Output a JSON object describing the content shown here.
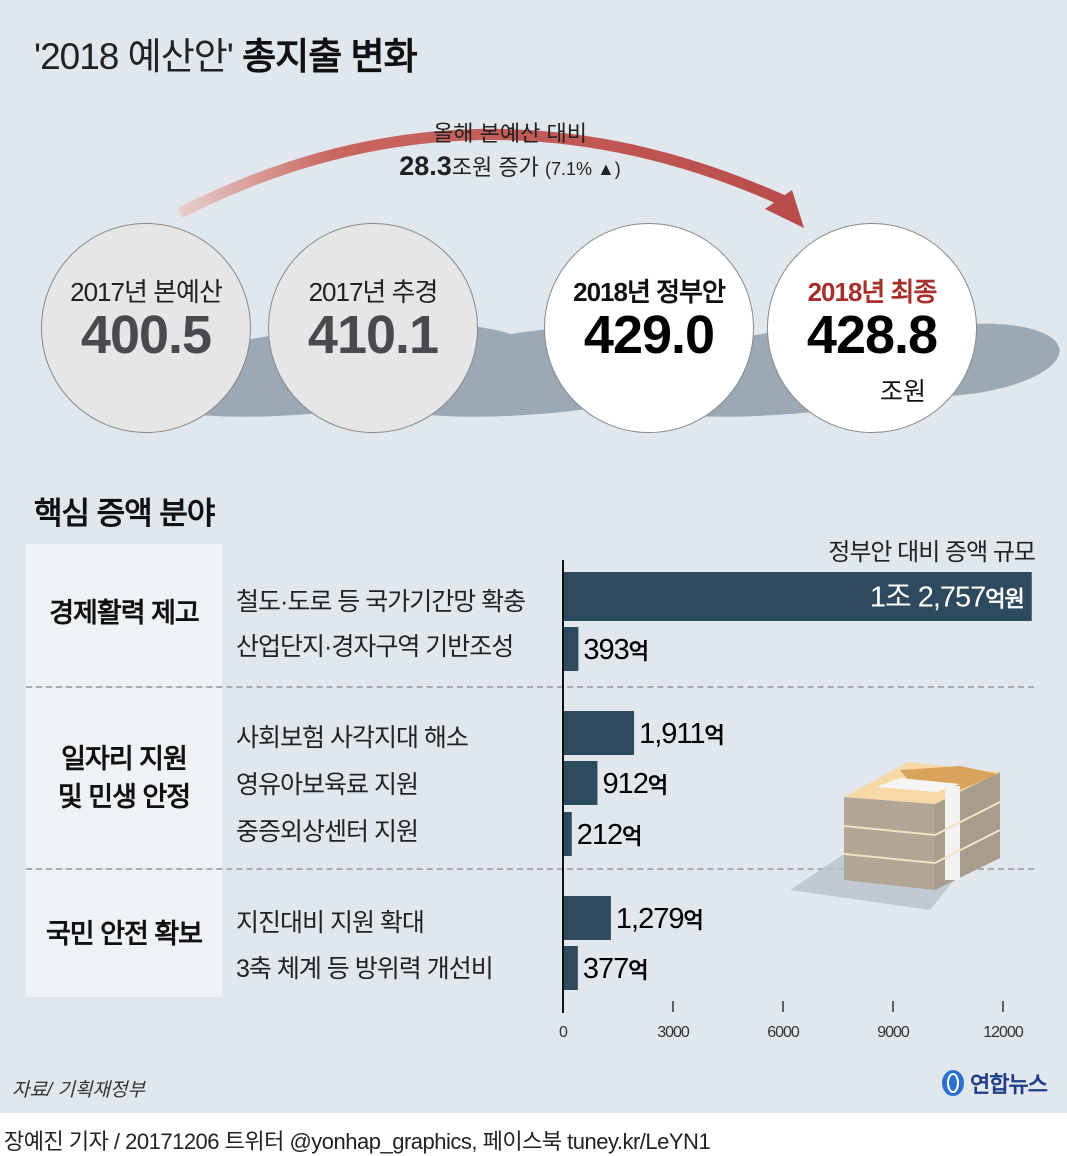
{
  "title": {
    "part1": "'2018 예산안'",
    "part2": "총지출 변화"
  },
  "arrow_caption": {
    "line1": "올해 본예산 대비",
    "amount": "28.3",
    "amount_unit": "조원 증가",
    "percent": "(7.1% ▲)"
  },
  "circles": [
    {
      "label": "2017년 본예산",
      "value": "400.5",
      "style": "gray"
    },
    {
      "label": "2017년 추경",
      "value": "410.1",
      "style": "gray"
    },
    {
      "label": "2018년 정부안",
      "value": "429.0",
      "style": "white"
    },
    {
      "label": "2018년 최종",
      "value": "428.8",
      "unit": "조원",
      "style": "white-highlight"
    }
  ],
  "colors": {
    "background": "#e0e7ed",
    "bar": "#2d4a5f",
    "arrow": "#b94c4a",
    "highlight_text": "#a8302c",
    "category_bg": "#eef2f5",
    "shadow": "#9aa9b4"
  },
  "section_title": "핵심 증액 분야",
  "categories": [
    {
      "label_lines": [
        "경제활력 제고"
      ]
    },
    {
      "label_lines": [
        "일자리 지원",
        "및 민생 안정"
      ]
    },
    {
      "label_lines": [
        "국민 안전 확보"
      ]
    }
  ],
  "chart_data": {
    "type": "bar",
    "orientation": "horizontal",
    "title": "정부안 대비 증액 규모",
    "unit": "억원",
    "categories": [
      "철도·도로 등 국가기간망 확충",
      "산업단지·경자구역 기반조성",
      "사회보험 사각지대 해소",
      "영유아보육료 지원",
      "중증외상센터 지원",
      "지진대비 지원 확대",
      "3축 체계 등 방위력 개선비"
    ],
    "groups": [
      0,
      0,
      1,
      1,
      1,
      2,
      2
    ],
    "values": [
      12757,
      393,
      1911,
      912,
      212,
      1279,
      377
    ],
    "data_labels": [
      {
        "num": "1조 2,757",
        "unit": "억원"
      },
      {
        "num": "393",
        "unit": "억"
      },
      {
        "num": "1,911",
        "unit": "억"
      },
      {
        "num": "912",
        "unit": "억"
      },
      {
        "num": "212",
        "unit": "억"
      },
      {
        "num": "1,279",
        "unit": "억"
      },
      {
        "num": "377",
        "unit": "억"
      }
    ],
    "xlim": [
      0,
      12757
    ],
    "xticks": [
      0,
      3000,
      6000,
      9000,
      12000
    ],
    "xtick_labels": [
      "0",
      "3000",
      "6000",
      "9000",
      "12000"
    ],
    "grid": false,
    "legend": "none"
  },
  "source": "자료/ 기획재정부",
  "footer": "장예진 기자 / 20171206 트위터 @yonhap_graphics, 페이스북 tuney.kr/LeYN1",
  "logo": {
    "text": "연합뉴스",
    "icon": "yonhap-globe-icon"
  }
}
